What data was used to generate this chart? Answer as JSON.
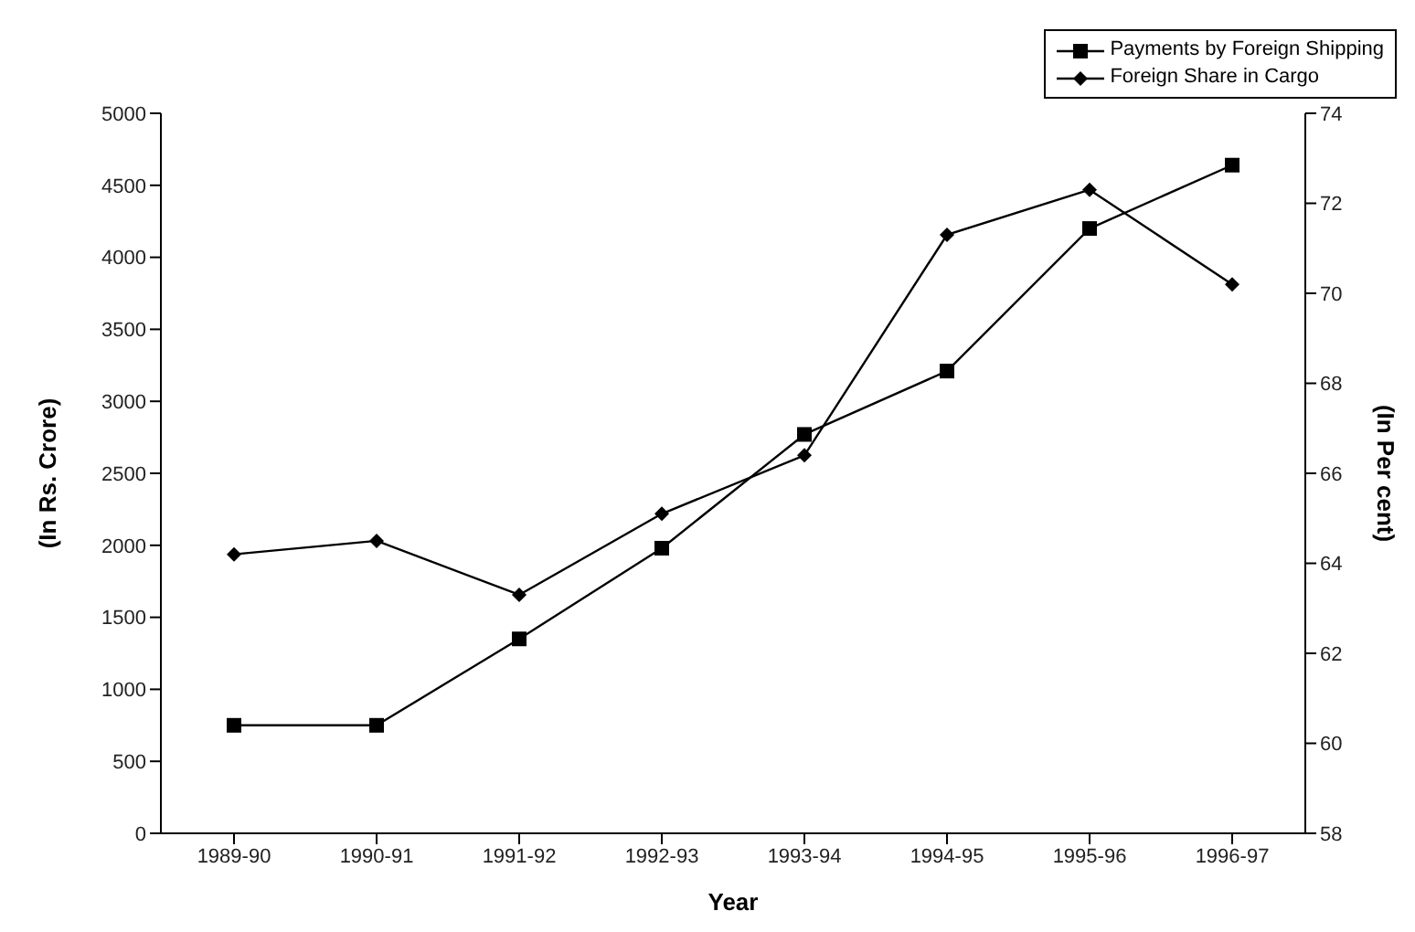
{
  "chart_data": {
    "type": "line",
    "xlabel": "Year",
    "ylabel": "(In Rs. Crore)",
    "y2label": "(In Per cent)",
    "categories": [
      "1989-90",
      "1990-91",
      "1991-92",
      "1992-93",
      "1993-94",
      "1994-95",
      "1995-96",
      "1996-97"
    ],
    "series": [
      {
        "name": "Payments by Foreign Shipping",
        "color": "#000000",
        "marker": "square",
        "values": [
          750,
          750,
          1350,
          1980,
          2770,
          3210,
          4200,
          4640
        ]
      },
      {
        "name": "Foreign Share in Cargo",
        "color": "#000000",
        "marker": "diamond",
        "axis": "y2",
        "values": [
          64.2,
          64.5,
          63.3,
          65.1,
          66.4,
          71.3,
          72.3,
          70.2
        ]
      }
    ],
    "ylim": [
      0,
      5000
    ],
    "yticks": [
      0,
      500,
      1000,
      1500,
      2000,
      2500,
      3000,
      3500,
      4000,
      4500,
      5000
    ],
    "y2lim": [
      58,
      74
    ],
    "y2ticks": [
      58,
      60,
      62,
      64,
      66,
      68,
      70,
      72,
      74
    ],
    "legend": "top right",
    "line_style": "solid"
  }
}
